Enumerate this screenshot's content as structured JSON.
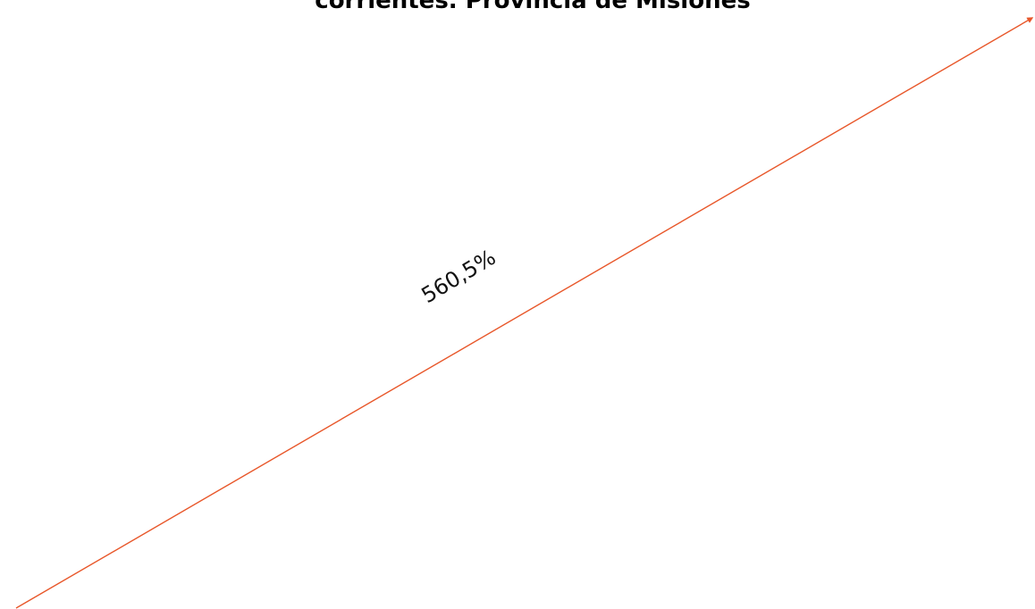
{
  "chart_data": {
    "type": "line",
    "title": "corrientes. Provincia de Misiones",
    "xlabel": "",
    "ylabel": "",
    "grid": false,
    "series": [
      {
        "color": "#E8572A",
        "values": [
          1,
          6.605
        ]
      }
    ],
    "annotations": [
      {
        "text": "560,5%"
      }
    ]
  }
}
